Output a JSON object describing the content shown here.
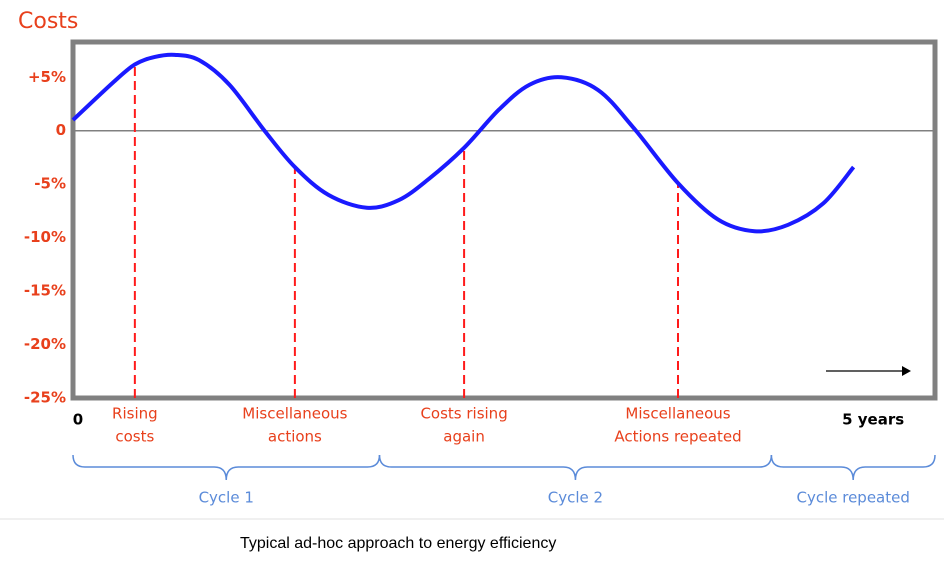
{
  "chart_data": {
    "type": "line",
    "y_label": "Costs",
    "caption": "Typical ad-hoc approach to energy efficiency",
    "xlim": [
      0,
      5.4
    ],
    "xticks": [
      0,
      {
        "value": 5,
        "label": "5 years"
      }
    ],
    "ylim": [
      -25,
      8.3
    ],
    "yticks": [
      {
        "value": 5,
        "label": "+5%"
      },
      0,
      {
        "value": -5,
        "label": "-5%"
      },
      {
        "value": -10,
        "label": "-10%"
      },
      {
        "value": -15,
        "label": "-15%"
      },
      {
        "value": -20,
        "label": "-20%"
      },
      {
        "value": -25,
        "label": "-25%"
      }
    ],
    "x": [
      0,
      0.25,
      0.3875,
      0.5125,
      0.6375,
      0.79,
      0.98,
      1.2,
      1.39,
      1.6,
      1.84,
      2.04,
      2.23,
      2.45,
      2.67,
      2.86,
      3.06,
      3.29,
      3.51,
      3.79,
      4.04,
      4.27,
      4.48,
      4.7,
      4.89
    ],
    "series": [
      {
        "color": "#1a1aff",
        "values": [
          1.0,
          4.5,
          6.2,
          6.9,
          7.1,
          6.6,
          4.3,
          0,
          -3.4,
          -6.0,
          -7.2,
          -6.5,
          -4.5,
          -1.6,
          2.0,
          4.3,
          5.0,
          3.8,
          0.3,
          -4.9,
          -8.3,
          -9.4,
          -8.8,
          -6.8,
          -3.4
        ]
      }
    ],
    "phases": [
      {
        "x": 0.3875,
        "lines": [
          "Rising",
          "costs"
        ]
      },
      {
        "x": 1.39,
        "lines": [
          "Miscellaneous",
          "actions"
        ]
      },
      {
        "x": 2.45,
        "lines": [
          "Costs rising",
          "again"
        ]
      },
      {
        "x": 3.79,
        "lines": [
          "Miscellaneous",
          "Actions repeated"
        ]
      }
    ],
    "cycles": [
      {
        "label": "Cycle 1",
        "start": 0,
        "end": 1.92
      },
      {
        "label": "Cycle 2",
        "start": 1.92,
        "end": 4.375
      },
      {
        "label": "Cycle repeated",
        "start": 4.375,
        "end": 5.4
      }
    ]
  }
}
